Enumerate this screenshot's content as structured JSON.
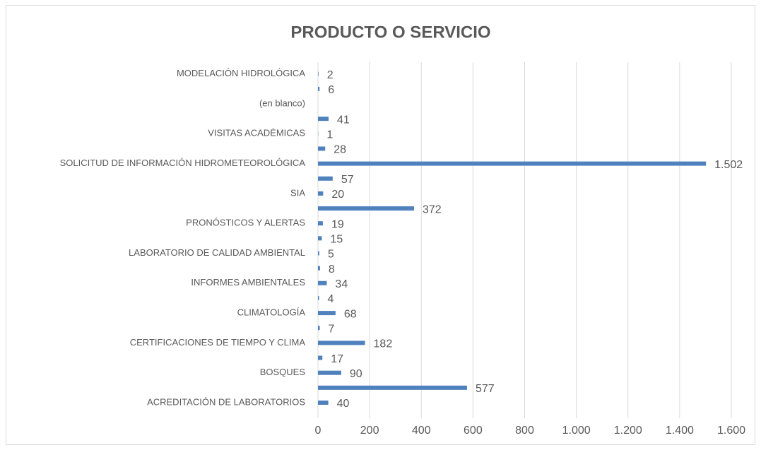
{
  "chart_data": {
    "type": "hbar",
    "title": "PRODUCTO O SERVICIO",
    "categories": [
      "ACREDITACIÓN DE LABORATORIOS",
      "BOSQUES",
      "CERTIFICACIONES DE TIEMPO Y CLIMA",
      "CLIMATOLOGÍA",
      "INFORMES AMBIENTALES",
      "LABORATORIO DE CALIDAD AMBIENTAL",
      "PRONÓSTICOS Y ALERTAS",
      "SIA",
      "SOLICITUD DE INFORMACIÓN HIDROMETEOROLÓGICA",
      "VISITAS ACADÉMICAS",
      "(en blanco)",
      "MODELACIÓN HIDROLÓGICA"
    ],
    "series": [
      {
        "color": "#4f81bd",
        "values": [
          40,
          90,
          182,
          68,
          34,
          5,
          19,
          20,
          1502,
          1,
          null,
          2
        ],
        "value_labels": [
          "40",
          "90",
          "182",
          "68",
          "34",
          "5",
          "19",
          "20",
          "1.502",
          "1",
          null,
          "2"
        ]
      },
      {
        "color": "#4f81bd",
        "values": [
          577,
          17,
          7,
          4,
          8,
          15,
          372,
          57,
          28,
          41,
          6,
          null
        ],
        "value_labels": [
          "577",
          "17",
          "7",
          "4",
          "8",
          "15",
          "372",
          "57",
          "28",
          "41",
          "6",
          null
        ]
      }
    ],
    "xlim": [
      0,
      1600
    ],
    "xticks": [
      0,
      200,
      400,
      600,
      800,
      {
        "value": 1000,
        "label": "1.000"
      },
      {
        "value": 1200,
        "label": "1.200"
      },
      {
        "value": 1400,
        "label": "1.400"
      },
      {
        "value": 1600,
        "label": "1.600"
      }
    ],
    "grid": true
  }
}
